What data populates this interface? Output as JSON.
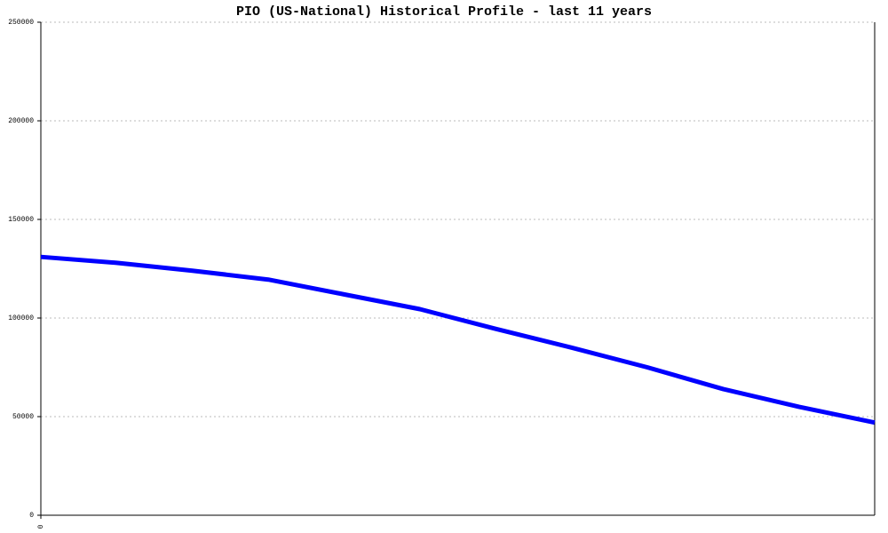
{
  "chart_data": {
    "type": "line",
    "title": "PIO (US-National) Historical Profile - last 11 years",
    "x": [
      0,
      1,
      2,
      3,
      4,
      5,
      6,
      7,
      8,
      9,
      10,
      11
    ],
    "series": [
      {
        "color": "#0000ff",
        "values": [
          131000,
          128000,
          124000,
          119500,
          112000,
          104500,
          94500,
          85000,
          75000,
          64000,
          55000,
          47000
        ]
      }
    ],
    "xlim": [
      0,
      11
    ],
    "xticks": [
      0
    ],
    "ylim": [
      0,
      250000
    ],
    "yticks": [
      0,
      50000,
      100000,
      150000,
      200000,
      250000
    ],
    "grid": true
  }
}
